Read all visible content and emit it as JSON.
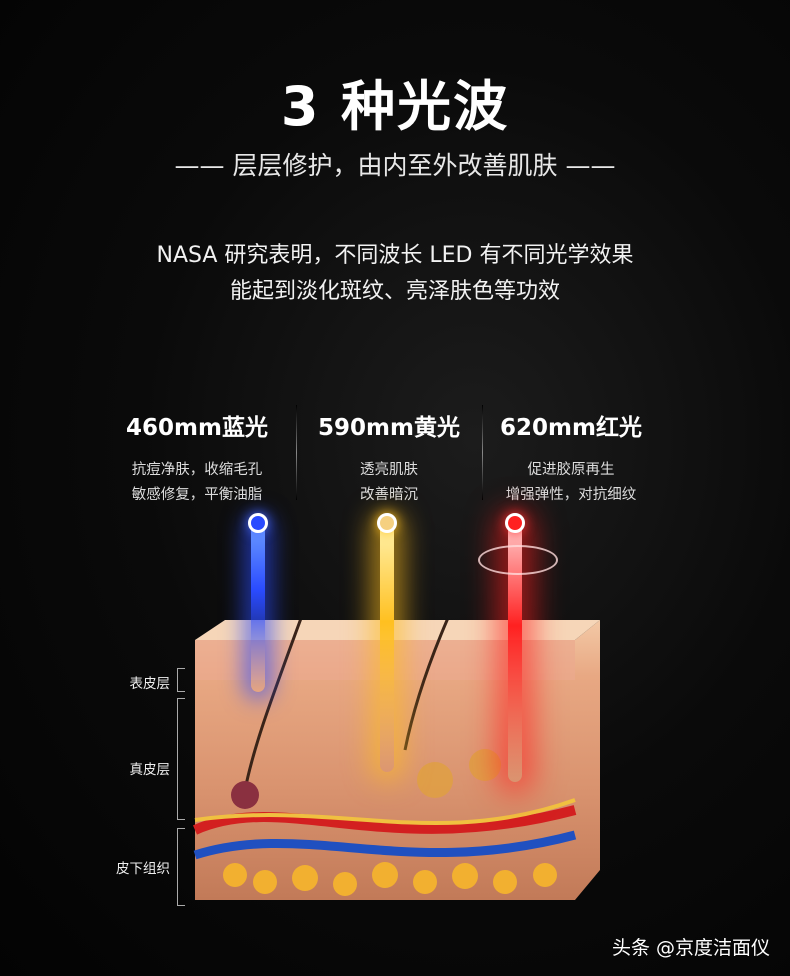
{
  "header": {
    "title": "3 种光波",
    "subtitle": "—— 层层修护，由内至外改善肌肤 ——"
  },
  "intro": {
    "line1": "NASA 研究表明，不同波长 LED 有不同光学效果",
    "line2": "能起到淡化斑纹、亮泽肤色等功效"
  },
  "lights": [
    {
      "name": "460mm蓝光",
      "line1": "抗痘净肤，收缩毛孔",
      "line2": "敏感修复，平衡油脂",
      "color": "#2a4bff"
    },
    {
      "name": "590mm黄光",
      "line1": "透亮肌肤",
      "line2": "改善暗沉",
      "color": "#ffc020"
    },
    {
      "name": "620mm红光",
      "line1": "促进胶原再生",
      "line2": "增强弹性，对抗细纹",
      "color": "#ff2020"
    }
  ],
  "layers": [
    "表皮层",
    "真皮层",
    "皮下组织"
  ],
  "watermark": "头条 @京度洁面仪"
}
